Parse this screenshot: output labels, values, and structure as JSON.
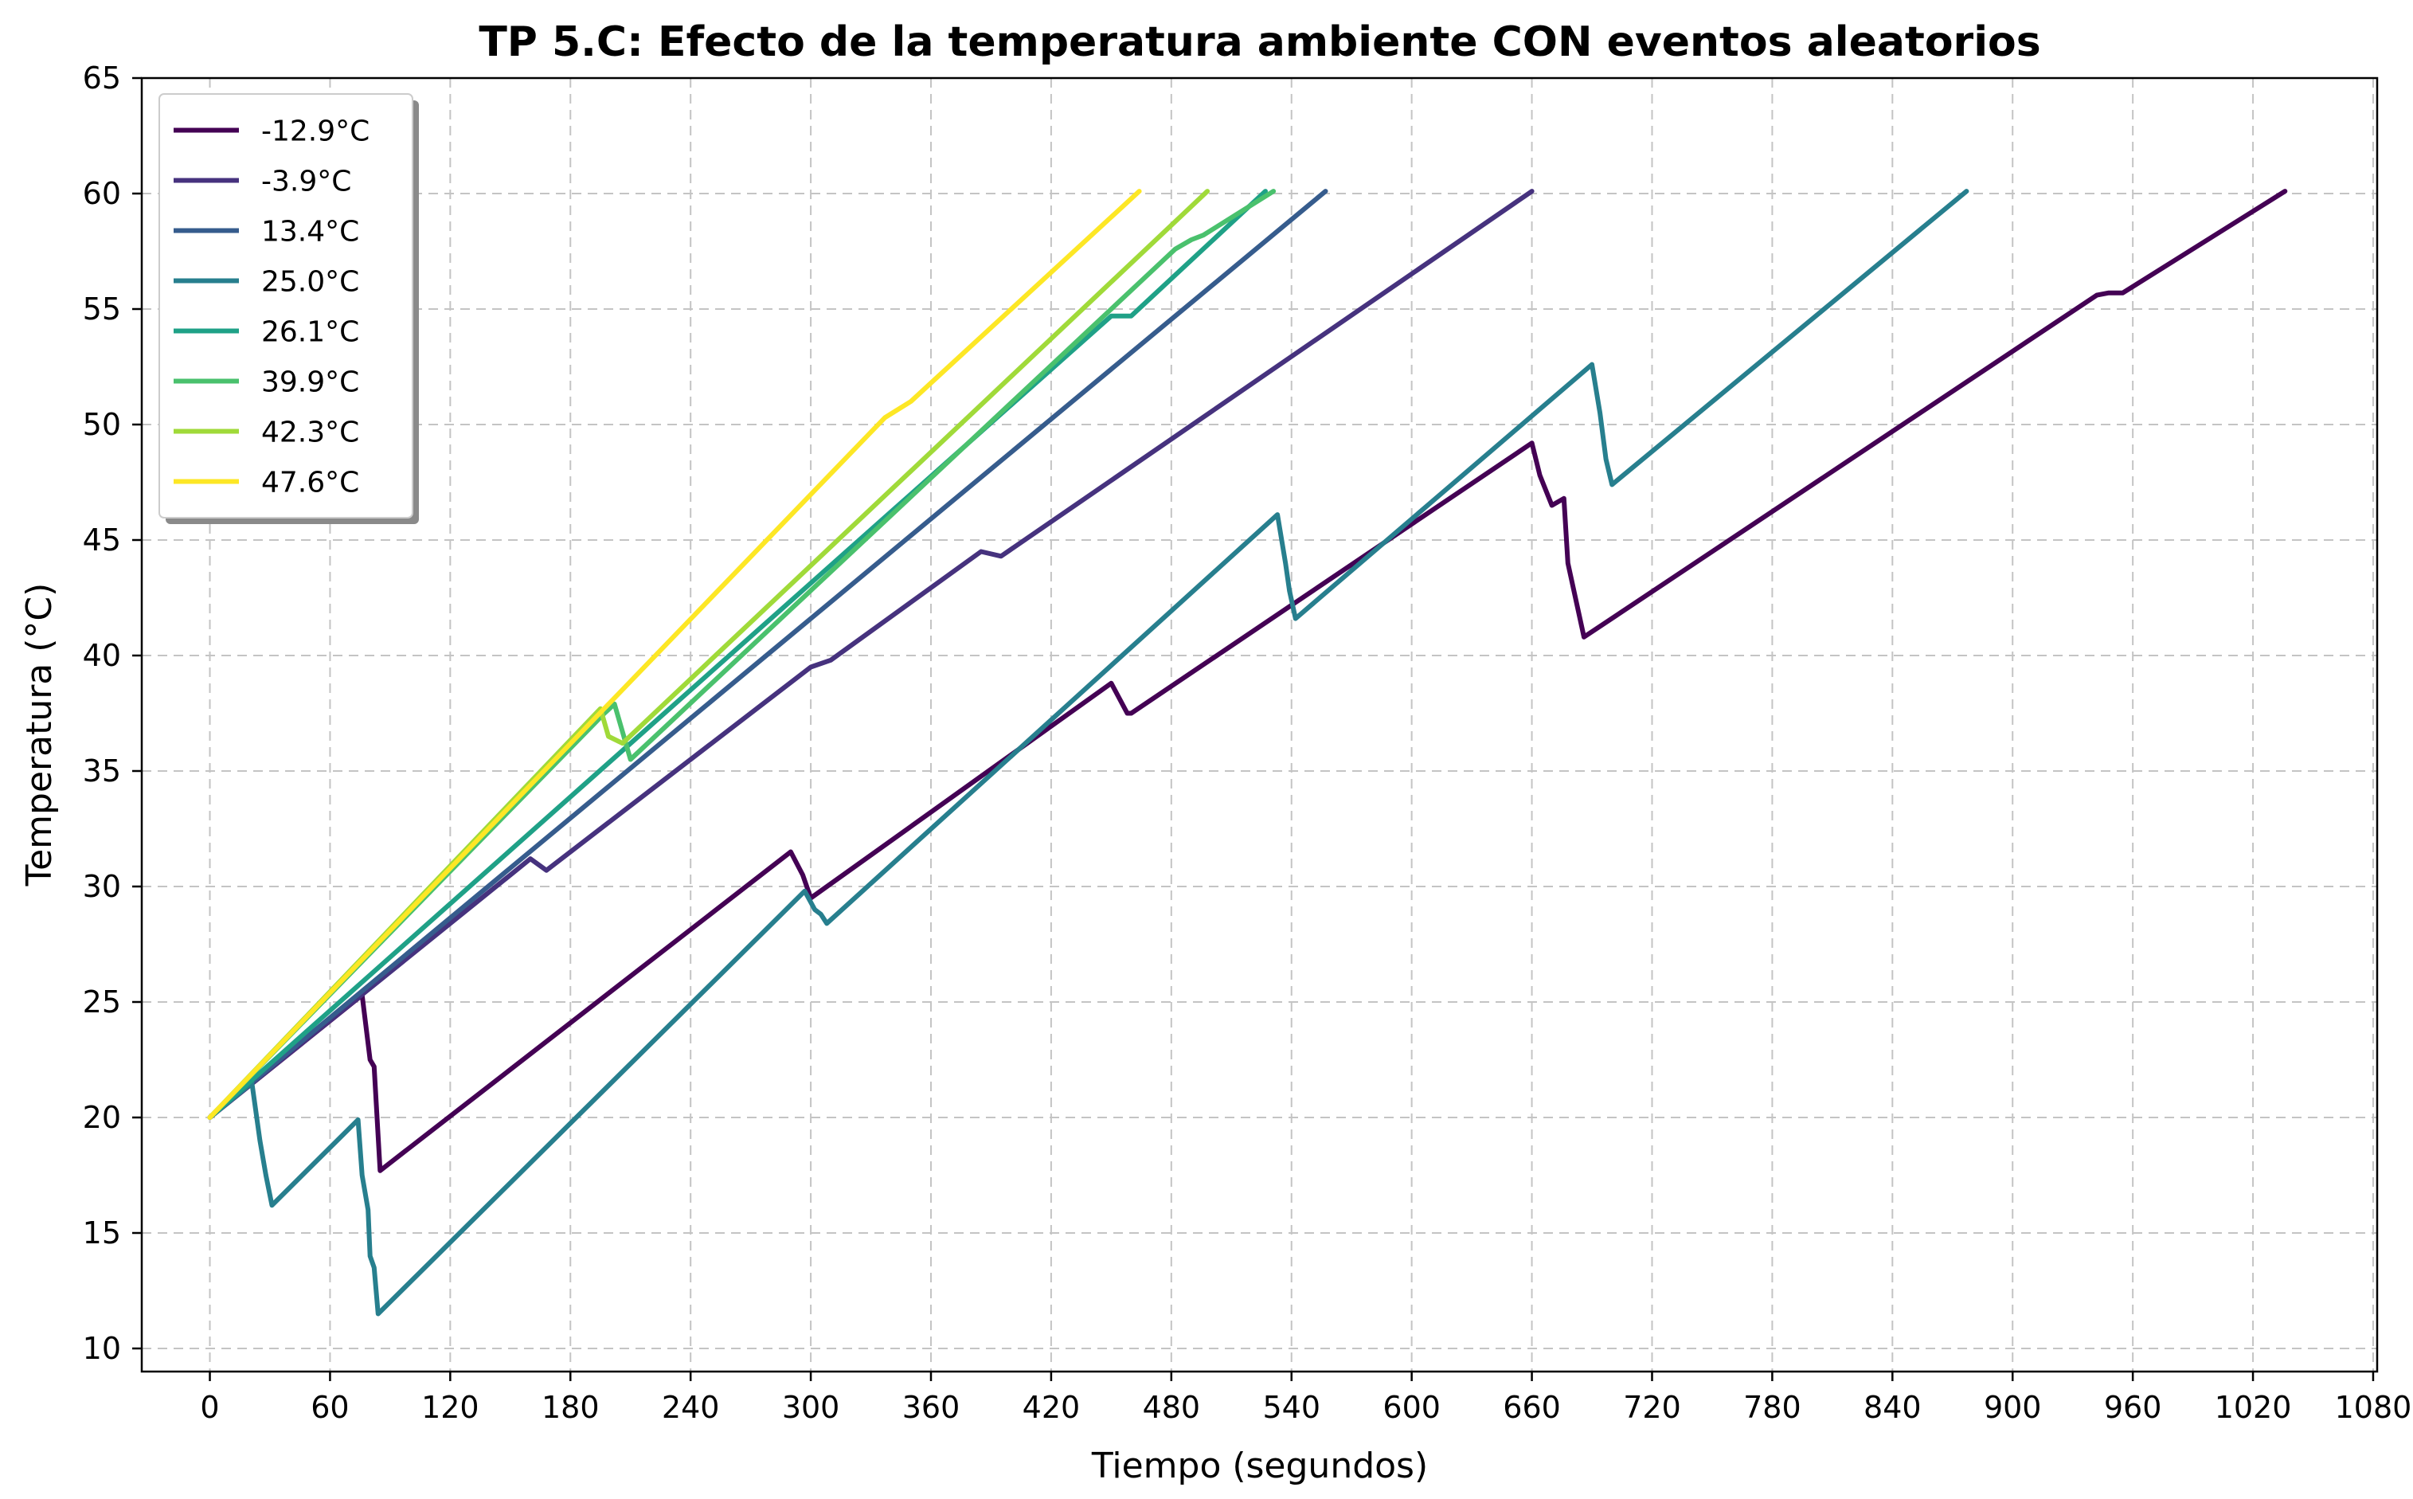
{
  "chart_data": {
    "type": "line",
    "title": "TP 5.C: Efecto de la temperatura ambiente CON eventos aleatorios",
    "xlabel": "Tiempo (segundos)",
    "ylabel": "Temperatura (°C)",
    "xlim": [
      -34,
      1082
    ],
    "ylim": [
      9,
      65
    ],
    "xticks": [
      0,
      60,
      120,
      180,
      240,
      300,
      360,
      420,
      480,
      540,
      600,
      660,
      720,
      780,
      840,
      900,
      960,
      1020,
      1080
    ],
    "yticks": [
      10,
      15,
      20,
      25,
      30,
      35,
      40,
      45,
      50,
      55,
      60,
      65
    ],
    "grid": true,
    "legend_position": "top-left",
    "series": [
      {
        "name": "-12.9°C",
        "color": "#440154",
        "points": [
          [
            0,
            20
          ],
          [
            76,
            25.3
          ],
          [
            80,
            22.5
          ],
          [
            82,
            22.2
          ],
          [
            85,
            17.7
          ],
          [
            290,
            31.5
          ],
          [
            296,
            30.5
          ],
          [
            300,
            29.5
          ],
          [
            450,
            38.8
          ],
          [
            458,
            37.5
          ],
          [
            460,
            37.5
          ],
          [
            660,
            49.2
          ],
          [
            664,
            47.8
          ],
          [
            670,
            46.5
          ],
          [
            676,
            46.8
          ],
          [
            678,
            44
          ],
          [
            686,
            40.8
          ],
          [
            942,
            55.6
          ],
          [
            948,
            55.7
          ],
          [
            955,
            55.7
          ],
          [
            1036,
            60.1
          ]
        ]
      },
      {
        "name": "-3.9°C",
        "color": "#46327e",
        "points": [
          [
            0,
            20
          ],
          [
            160,
            31.2
          ],
          [
            168,
            30.7
          ],
          [
            300,
            39.5
          ],
          [
            310,
            39.8
          ],
          [
            385,
            44.5
          ],
          [
            395,
            44.3
          ],
          [
            660,
            60.1
          ]
        ]
      },
      {
        "name": "13.4°C",
        "color": "#365c8d",
        "points": [
          [
            0,
            20
          ],
          [
            557,
            60.1
          ]
        ]
      },
      {
        "name": "25.0°C",
        "color": "#277f8e",
        "points": [
          [
            0,
            20
          ],
          [
            21,
            21.5
          ],
          [
            25,
            19
          ],
          [
            28,
            17.5
          ],
          [
            31,
            16.2
          ],
          [
            74,
            19.9
          ],
          [
            76,
            17.5
          ],
          [
            79,
            16
          ],
          [
            80,
            14
          ],
          [
            82,
            13.5
          ],
          [
            84,
            11.5
          ],
          [
            297,
            29.8
          ],
          [
            302,
            29
          ],
          [
            305,
            28.8
          ],
          [
            308,
            28.4
          ],
          [
            533,
            46.1
          ],
          [
            537,
            44
          ],
          [
            539,
            42.8
          ],
          [
            542,
            41.6
          ],
          [
            690,
            52.6
          ],
          [
            694,
            50.5
          ],
          [
            697,
            48.5
          ],
          [
            700,
            47.4
          ],
          [
            877,
            60.1
          ]
        ]
      },
      {
        "name": "26.1°C",
        "color": "#1fa187",
        "points": [
          [
            0,
            20
          ],
          [
            450,
            54.7
          ],
          [
            460,
            54.7
          ],
          [
            527,
            60.1
          ]
        ]
      },
      {
        "name": "39.9°C",
        "color": "#4ac16d",
        "points": [
          [
            0,
            20
          ],
          [
            197,
            37.5
          ],
          [
            202,
            37.9
          ],
          [
            210,
            35.5
          ],
          [
            482,
            57.6
          ],
          [
            490,
            58
          ],
          [
            496,
            58.2
          ],
          [
            531,
            60.1
          ]
        ]
      },
      {
        "name": "42.3°C",
        "color": "#a0da39",
        "points": [
          [
            0,
            20
          ],
          [
            195,
            37.7
          ],
          [
            199,
            36.5
          ],
          [
            206,
            36.2
          ],
          [
            498,
            60.1
          ]
        ]
      },
      {
        "name": "47.6°C",
        "color": "#fde725",
        "points": [
          [
            0,
            20
          ],
          [
            337,
            50.3
          ],
          [
            350,
            51
          ],
          [
            464,
            60.1
          ]
        ]
      }
    ]
  }
}
